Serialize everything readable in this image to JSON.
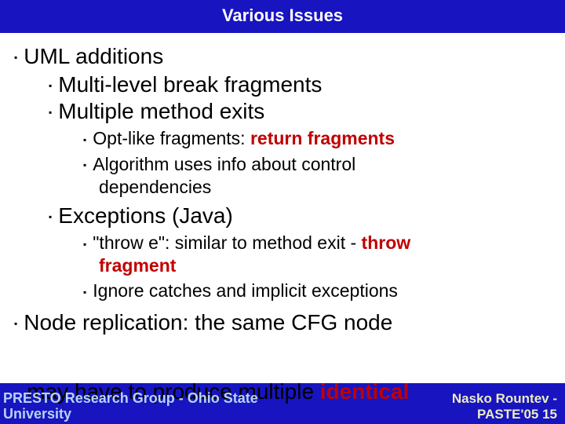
{
  "title": "Various Issues",
  "b1": "UML additions",
  "b1a": "Multi-level break fragments",
  "b1b": "Multiple method exits",
  "b1b_i_pre": "Opt-like fragments: ",
  "b1b_i_hl": "return fragments",
  "b1b_ii_l1": "Algorithm uses info about control",
  "b1b_ii_l2": "dependencies",
  "b1c": "Exceptions (Java)",
  "b1c_i_l1_pre": "\"throw e\": similar to method exit - ",
  "b1c_i_l1_hl": "throw",
  "b1c_i_l2_hl": "fragment",
  "b1c_ii": "Ignore catches and implicit exceptions",
  "b2_l1": "Node replication: the same CFG node",
  "b2_l2_pre": "may have to produce multiple ",
  "b2_l2_hl": "identical",
  "footer_left_a": "PRESTO Research Group - Ohio State",
  "footer_left_b": "University",
  "footer_right_a": "Nasko Rountev -",
  "footer_right_b": "PASTE'05  15",
  "colors": {
    "title_bg": "#1714c0",
    "highlight": "#c00000",
    "footer_left_color": "#b6d3f3",
    "footer_right_color": "#ebecc2"
  }
}
